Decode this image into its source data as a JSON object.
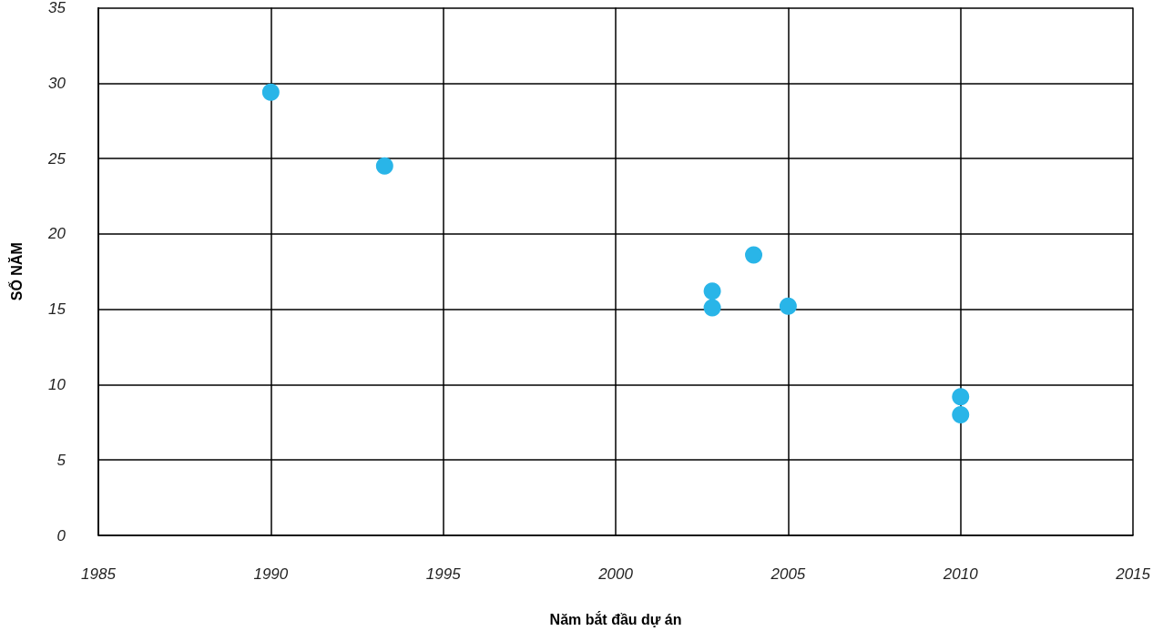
{
  "chart_data": {
    "type": "scatter",
    "xlabel": "Năm bắt đầu dự án",
    "ylabel": "SỐ NĂM",
    "x": [
      1990,
      1993.3,
      2002.8,
      2002.8,
      2004,
      2005,
      2010,
      2010
    ],
    "series": [
      {
        "color": "#29b5e8",
        "values": [
          29.4,
          24.5,
          16.2,
          15.1,
          18.6,
          15.2,
          9.2,
          8.0
        ]
      }
    ],
    "xlim": [
      1985,
      2015
    ],
    "xticks": [
      1985,
      1990,
      1995,
      2000,
      2005,
      2010,
      2015
    ],
    "ylim": [
      0,
      35
    ],
    "yticks": [
      0,
      5,
      10,
      15,
      20,
      25,
      30,
      35
    ],
    "grid": true,
    "marker": "circle"
  }
}
